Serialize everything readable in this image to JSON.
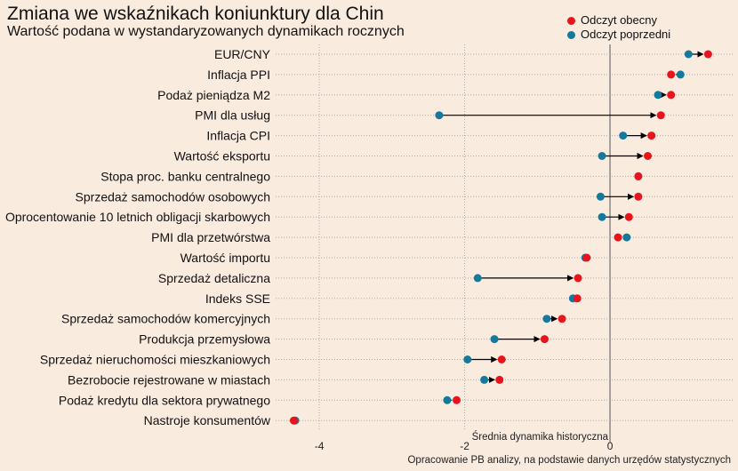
{
  "chart_data": {
    "type": "dumbbell",
    "title": "Zmiana we wskaźnikach koniunktury dla Chin",
    "subtitle": "Wartość podana w wystandaryzowanych dynamikach rocznych",
    "xlim": [
      -4.6,
      1.7
    ],
    "xticks": [
      -4,
      -2,
      0
    ],
    "xtick_labels": [
      "-4",
      "-2",
      "0"
    ],
    "zero_line_label": "Średnia dynamika historyczna",
    "caption": "Opracowanie  PB analizy, na podstawie danych urzędów statystycznych",
    "grid": true,
    "legend": {
      "position": "top-right",
      "entries": [
        "Odczyt obecny",
        "Odczyt poprzedni"
      ]
    },
    "colors": {
      "current": "#e8141c",
      "previous": "#14799a"
    },
    "categories": [
      "EUR/CNY",
      "Inflacja PPI",
      "Podaż pieniądza M2",
      "PMI dla usług",
      "Inflacja CPI",
      "Wartość eksportu",
      "Stopa proc. banku centralnego",
      "Sprzedaż samochodów osobowych",
      "Oprocentowanie 10 letnich obligacji skarbowych",
      "PMI dla przetwórstwa",
      "Wartość importu",
      "Sprzedaż detaliczna",
      "Indeks SSE",
      "Sprzedaż samochodów komercyjnych",
      "Produkcja przemysłowa",
      "Sprzedaż nieruchomości mieszkaniowych",
      "Bezrobocie rejestrowane w miastach",
      "Podaż kredytu dla sektora prywatnego",
      "Nastroje konsumentów"
    ],
    "series": [
      {
        "name": "Odczyt obecny",
        "values": [
          1.35,
          0.84,
          0.84,
          0.7,
          0.57,
          0.52,
          0.39,
          0.39,
          0.26,
          0.11,
          -0.32,
          -0.44,
          -0.45,
          -0.66,
          -0.9,
          -1.49,
          -1.52,
          -2.11,
          -4.35
        ]
      },
      {
        "name": "Odczyt poprzedni",
        "values": [
          1.08,
          0.97,
          0.66,
          -2.35,
          0.18,
          -0.11,
          0.39,
          -0.13,
          -0.11,
          0.23,
          -0.34,
          -1.82,
          -0.51,
          -0.87,
          -1.59,
          -1.96,
          -1.73,
          -2.24,
          -4.33
        ]
      }
    ]
  }
}
